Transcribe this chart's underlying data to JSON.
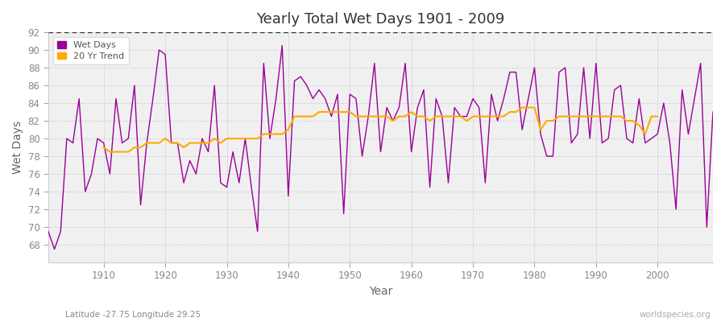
{
  "title": "Yearly Total Wet Days 1901 - 2009",
  "xlabel": "Year",
  "ylabel": "Wet Days",
  "xlim": [
    1901,
    2009
  ],
  "ylim": [
    66,
    92
  ],
  "yticks": [
    68,
    70,
    72,
    74,
    76,
    78,
    80,
    82,
    84,
    86,
    88,
    90,
    92
  ],
  "xticks": [
    1910,
    1920,
    1930,
    1940,
    1950,
    1960,
    1970,
    1980,
    1990,
    2000
  ],
  "fig_bg_color": "#ffffff",
  "plot_bg_color": "#f0f0f0",
  "wet_days_color": "#990099",
  "trend_color": "#ffaa00",
  "dotted_line_y": 92,
  "subtitle_left": "Latitude -27.75 Longitude 29.25",
  "subtitle_right": "worldspecies.org",
  "years": [
    1901,
    1902,
    1903,
    1904,
    1905,
    1906,
    1907,
    1908,
    1909,
    1910,
    1911,
    1912,
    1913,
    1914,
    1915,
    1916,
    1917,
    1918,
    1919,
    1920,
    1921,
    1922,
    1923,
    1924,
    1925,
    1926,
    1927,
    1928,
    1929,
    1930,
    1931,
    1932,
    1933,
    1934,
    1935,
    1936,
    1937,
    1938,
    1939,
    1940,
    1941,
    1942,
    1943,
    1944,
    1945,
    1946,
    1947,
    1948,
    1949,
    1950,
    1951,
    1952,
    1953,
    1954,
    1955,
    1956,
    1957,
    1958,
    1959,
    1960,
    1961,
    1962,
    1963,
    1964,
    1965,
    1966,
    1967,
    1968,
    1969,
    1970,
    1971,
    1972,
    1973,
    1974,
    1975,
    1976,
    1977,
    1978,
    1979,
    1980,
    1981,
    1982,
    1983,
    1984,
    1985,
    1986,
    1987,
    1988,
    1989,
    1990,
    1991,
    1992,
    1993,
    1994,
    1995,
    1996,
    1997,
    1998,
    1999,
    2000,
    2001,
    2002,
    2003,
    2004,
    2005,
    2006,
    2007,
    2008,
    2009
  ],
  "wet_days": [
    69.5,
    67.5,
    69.5,
    80.0,
    79.5,
    84.5,
    74.0,
    76.0,
    80.0,
    79.5,
    76.0,
    84.5,
    79.5,
    80.0,
    86.0,
    72.5,
    79.5,
    84.5,
    90.0,
    89.5,
    79.5,
    79.5,
    75.0,
    77.5,
    76.0,
    80.0,
    78.5,
    86.0,
    75.0,
    74.5,
    78.5,
    75.0,
    80.0,
    74.5,
    69.5,
    88.5,
    80.0,
    84.5,
    90.5,
    73.5,
    86.5,
    87.0,
    86.0,
    84.5,
    85.5,
    84.5,
    82.5,
    85.0,
    71.5,
    85.0,
    84.5,
    78.0,
    82.5,
    88.5,
    78.5,
    83.5,
    82.0,
    83.5,
    88.5,
    78.5,
    83.5,
    85.5,
    74.5,
    84.5,
    82.5,
    75.0,
    83.5,
    82.5,
    82.5,
    84.5,
    83.5,
    75.0,
    85.0,
    82.0,
    84.5,
    87.5,
    87.5,
    81.0,
    84.5,
    88.0,
    80.5,
    78.0,
    78.0,
    87.5,
    88.0,
    79.5,
    80.5,
    88.0,
    80.0,
    88.5,
    79.5,
    80.0,
    85.5,
    86.0,
    80.0,
    79.5,
    84.5,
    79.5,
    80.0,
    80.5,
    84.0,
    79.5,
    72.0,
    85.5,
    80.5,
    84.5,
    88.5,
    70.0,
    83.0
  ],
  "trend": [
    null,
    null,
    null,
    null,
    null,
    null,
    null,
    null,
    null,
    79.0,
    78.5,
    78.5,
    78.5,
    78.5,
    79.0,
    79.0,
    79.5,
    79.5,
    79.5,
    80.0,
    79.5,
    79.5,
    79.0,
    79.5,
    79.5,
    79.5,
    79.5,
    80.0,
    79.5,
    80.0,
    80.0,
    80.0,
    80.0,
    80.0,
    80.0,
    80.5,
    80.5,
    80.5,
    80.5,
    81.0,
    82.5,
    82.5,
    82.5,
    82.5,
    83.0,
    83.0,
    83.0,
    83.0,
    83.0,
    83.0,
    82.5,
    82.5,
    82.5,
    82.5,
    82.5,
    82.5,
    82.0,
    82.5,
    82.5,
    83.0,
    82.5,
    82.5,
    82.0,
    82.5,
    82.5,
    82.5,
    82.5,
    82.5,
    82.0,
    82.5,
    82.5,
    82.5,
    82.5,
    82.5,
    82.5,
    83.0,
    83.0,
    83.5,
    83.5,
    83.5,
    81.0,
    82.0,
    82.0,
    82.5,
    82.5,
    82.5,
    82.5,
    82.5,
    82.5,
    82.5,
    82.5,
    82.5,
    82.5,
    82.5,
    82.0,
    82.0,
    81.5,
    80.5,
    82.5,
    82.5,
    null,
    null,
    null,
    null,
    null,
    null,
    null,
    null,
    null
  ]
}
